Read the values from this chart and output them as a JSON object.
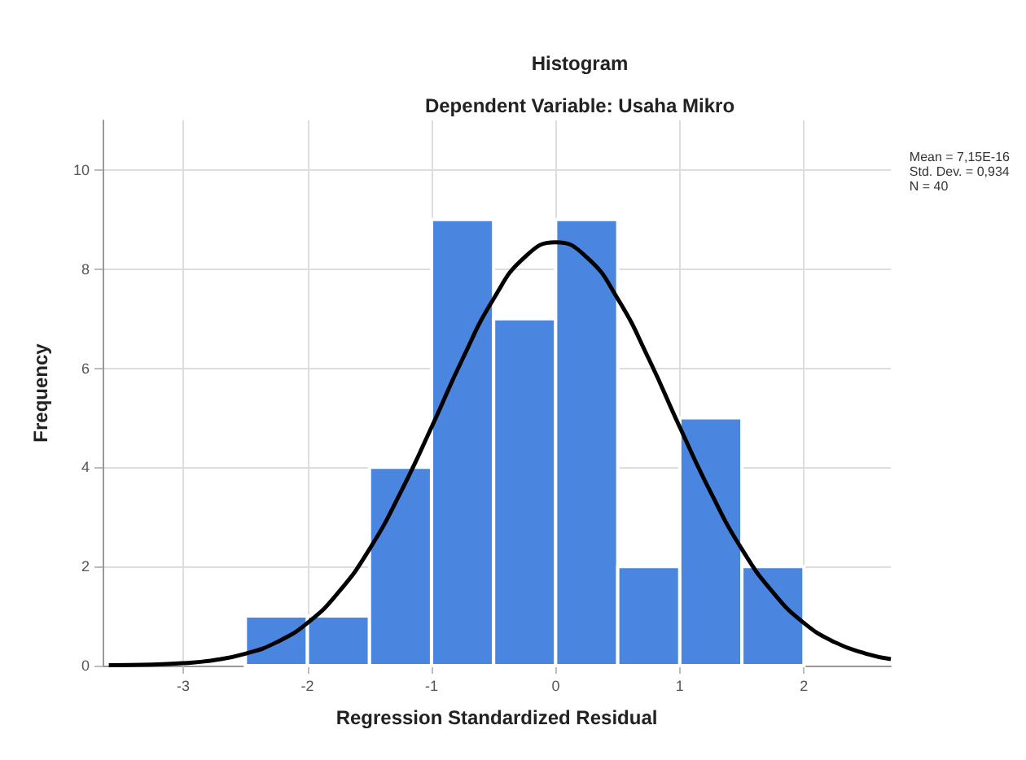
{
  "chart_data": {
    "type": "histogram",
    "title": "Histogram",
    "subtitle": "Dependent Variable: Usaha Mikro",
    "xlabel": "Regression Standardized Residual",
    "ylabel": "Frequency",
    "bins": [
      -2.5,
      -2,
      -1.5,
      -1,
      -0.5,
      0,
      0.5,
      1,
      1.5,
      2
    ],
    "values": [
      1,
      1,
      4,
      9,
      7,
      9,
      2,
      5,
      2
    ],
    "color": "#4a86e0",
    "series": [
      {
        "type": "line",
        "color": "#000000",
        "x": [
          -3.6,
          -3.25,
          -3,
          -2.75,
          -2.5,
          -2.25,
          -2,
          -1.75,
          -1.5,
          -1.25,
          -1,
          -0.75,
          -0.5,
          -0.25,
          0,
          0.25,
          0.5,
          0.75,
          1,
          1.25,
          1.5,
          1.75,
          2,
          2.25,
          2.5,
          2.7
        ],
        "values": [
          0.01,
          0.02,
          0.05,
          0.11,
          0.24,
          0.47,
          0.86,
          1.48,
          2.35,
          3.49,
          4.81,
          6.19,
          7.4,
          8.24,
          8.54,
          8.24,
          7.4,
          6.19,
          4.81,
          3.49,
          2.35,
          1.48,
          0.86,
          0.47,
          0.24,
          0.13
        ]
      }
    ],
    "xlim": [
      -3.65,
      2.7
    ],
    "xticks": [
      -3,
      -2,
      -1,
      0,
      1,
      2
    ],
    "ylim": [
      0,
      11
    ],
    "yticks": [
      0,
      2,
      4,
      6,
      8,
      10
    ],
    "grid": true,
    "marker": "none",
    "line_style": "solid",
    "annotations": [
      "Mean = 7,15E-16",
      "Std. Dev. = 0,934",
      "N = 40"
    ]
  }
}
